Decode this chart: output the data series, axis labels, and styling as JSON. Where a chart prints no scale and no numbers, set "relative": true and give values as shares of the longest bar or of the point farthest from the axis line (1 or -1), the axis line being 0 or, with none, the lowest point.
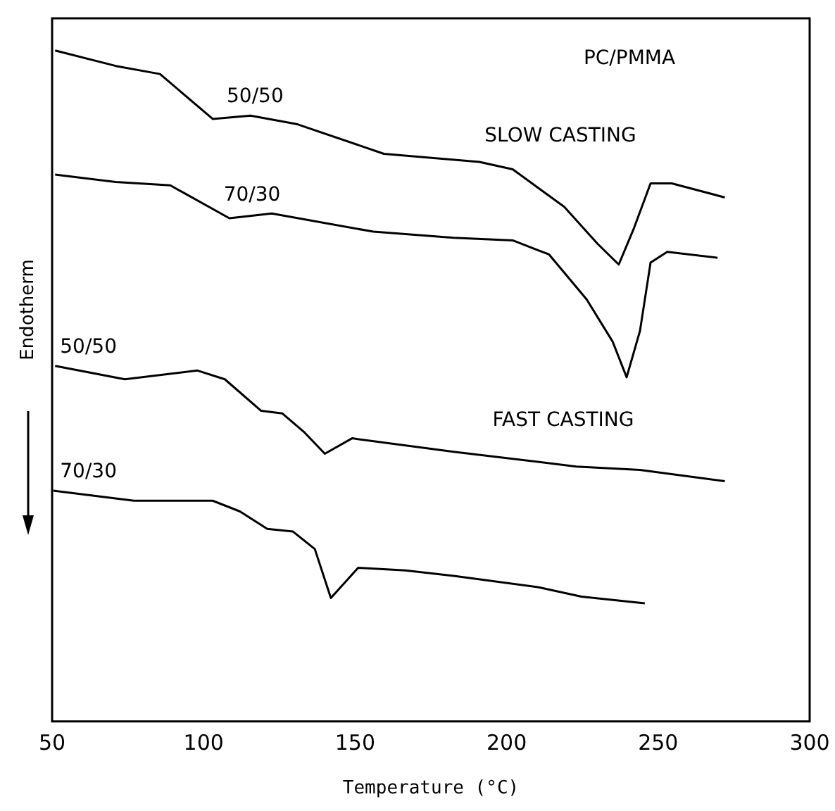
{
  "chart_data": {
    "type": "line",
    "relative": true,
    "xlabel": "Temperature (°C)",
    "ylabel": "Endotherm",
    "xlim": [
      50,
      300
    ],
    "xticks": [
      50,
      100,
      150,
      200,
      250,
      300
    ],
    "grid": false,
    "legend": false,
    "marker": "none",
    "line_style": "solid",
    "annotations": [
      "PC/PMMA",
      "SLOW CASTING",
      "FAST CASTING"
    ],
    "series": [
      {
        "name": "50/50",
        "color": "#000000",
        "x": [
          51,
          71,
          85.6,
          103,
          115.5,
          131,
          159.5,
          191,
          202,
          219,
          230,
          237,
          242,
          247.5,
          254.5,
          272
        ],
        "values": [
          1.0,
          0.977,
          0.965,
          0.898,
          0.903,
          0.89,
          0.846,
          0.834,
          0.823,
          0.767,
          0.712,
          0.681,
          0.735,
          0.802,
          0.802,
          0.781
        ]
      },
      {
        "name": "70/30",
        "color": "#000000",
        "x": [
          51,
          71,
          89,
          108.5,
          122.5,
          156,
          182.5,
          202,
          214,
          226.4,
          235,
          239.6,
          244,
          247.5,
          253,
          269.6
        ],
        "values": [
          0.815,
          0.804,
          0.799,
          0.75,
          0.757,
          0.73,
          0.721,
          0.717,
          0.696,
          0.629,
          0.566,
          0.513,
          0.582,
          0.684,
          0.7,
          0.691
        ]
      },
      {
        "name": "50/50",
        "color": "#000000",
        "x": [
          51,
          74,
          98,
          107,
          119,
          126,
          133,
          140,
          149,
          182.5,
          223,
          244,
          272
        ],
        "values": [
          0.53,
          0.51,
          0.523,
          0.51,
          0.463,
          0.459,
          0.432,
          0.399,
          0.422,
          0.402,
          0.38,
          0.375,
          0.358
        ]
      },
      {
        "name": "70/30",
        "color": "#000000",
        "x": [
          50.4,
          77,
          103,
          112,
          121,
          129.5,
          136.7,
          142,
          151,
          166.6,
          182.5,
          210.6,
          224.7,
          245.6
        ],
        "values": [
          0.344,
          0.329,
          0.329,
          0.313,
          0.287,
          0.283,
          0.257,
          0.184,
          0.229,
          0.225,
          0.217,
          0.2,
          0.186,
          0.176
        ]
      }
    ]
  }
}
